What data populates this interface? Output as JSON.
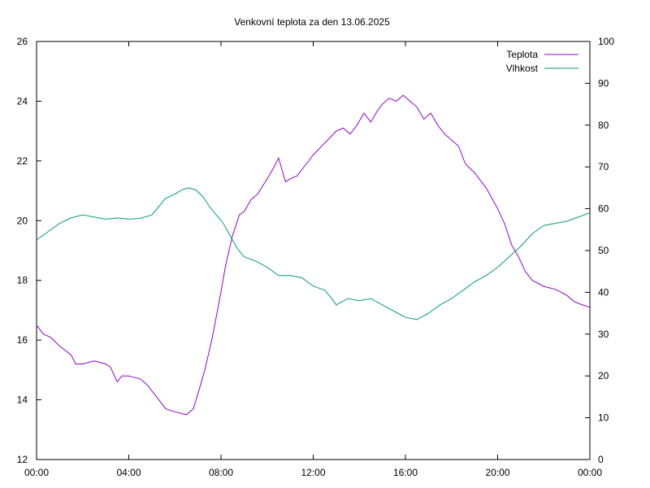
{
  "chart_data": {
    "type": "line",
    "title": "Venkovní teplota za den 13.06.2025",
    "x_ticks": [
      "00:00",
      "04:00",
      "08:00",
      "12:00",
      "16:00",
      "20:00",
      "00:00"
    ],
    "x_range_hours": [
      0,
      24
    ],
    "y_left": {
      "range": [
        12,
        26
      ],
      "ticks": [
        "12",
        "14",
        "16",
        "18",
        "20",
        "22",
        "24",
        "26"
      ]
    },
    "y_right": {
      "range": [
        0,
        100
      ],
      "ticks": [
        "0",
        "10",
        "20",
        "30",
        "40",
        "50",
        "60",
        "70",
        "80",
        "90",
        "100"
      ]
    },
    "grid": false,
    "legend_position": "top-right",
    "series": [
      {
        "name": "Teplota",
        "axis": "left",
        "color": "#9400d3",
        "points": [
          [
            0,
            16.5
          ],
          [
            0.3,
            16.2
          ],
          [
            0.6,
            16.1
          ],
          [
            1.0,
            15.8
          ],
          [
            1.5,
            15.5
          ],
          [
            1.7,
            15.2
          ],
          [
            2.0,
            15.2
          ],
          [
            2.5,
            15.3
          ],
          [
            3.0,
            15.2
          ],
          [
            3.2,
            15.1
          ],
          [
            3.5,
            14.6
          ],
          [
            3.7,
            14.8
          ],
          [
            4.0,
            14.8
          ],
          [
            4.5,
            14.7
          ],
          [
            4.8,
            14.5
          ],
          [
            5.0,
            14.3
          ],
          [
            5.3,
            14.0
          ],
          [
            5.6,
            13.7
          ],
          [
            6.0,
            13.6
          ],
          [
            6.5,
            13.5
          ],
          [
            6.8,
            13.7
          ],
          [
            7.0,
            14.2
          ],
          [
            7.3,
            15.0
          ],
          [
            7.6,
            16.0
          ],
          [
            7.9,
            17.2
          ],
          [
            8.2,
            18.5
          ],
          [
            8.5,
            19.5
          ],
          [
            8.8,
            20.2
          ],
          [
            9.0,
            20.3
          ],
          [
            9.3,
            20.7
          ],
          [
            9.6,
            20.9
          ],
          [
            10.0,
            21.4
          ],
          [
            10.3,
            21.8
          ],
          [
            10.5,
            22.1
          ],
          [
            10.8,
            21.3
          ],
          [
            11.0,
            21.4
          ],
          [
            11.3,
            21.5
          ],
          [
            11.7,
            21.9
          ],
          [
            12.0,
            22.2
          ],
          [
            12.5,
            22.6
          ],
          [
            13.0,
            23.0
          ],
          [
            13.3,
            23.1
          ],
          [
            13.6,
            22.9
          ],
          [
            13.9,
            23.2
          ],
          [
            14.2,
            23.6
          ],
          [
            14.5,
            23.3
          ],
          [
            14.8,
            23.7
          ],
          [
            15.0,
            23.9
          ],
          [
            15.3,
            24.1
          ],
          [
            15.6,
            24.0
          ],
          [
            15.9,
            24.2
          ],
          [
            16.2,
            24.0
          ],
          [
            16.5,
            23.8
          ],
          [
            16.8,
            23.4
          ],
          [
            17.1,
            23.6
          ],
          [
            17.4,
            23.2
          ],
          [
            17.7,
            22.9
          ],
          [
            18.0,
            22.7
          ],
          [
            18.3,
            22.5
          ],
          [
            18.6,
            21.9
          ],
          [
            19.0,
            21.6
          ],
          [
            19.5,
            21.1
          ],
          [
            20.0,
            20.4
          ],
          [
            20.3,
            19.9
          ],
          [
            20.6,
            19.2
          ],
          [
            20.9,
            18.8
          ],
          [
            21.2,
            18.3
          ],
          [
            21.5,
            18.0
          ],
          [
            22.0,
            17.8
          ],
          [
            22.5,
            17.7
          ],
          [
            23.0,
            17.5
          ],
          [
            23.3,
            17.3
          ],
          [
            23.6,
            17.2
          ],
          [
            24.0,
            17.1
          ]
        ]
      },
      {
        "name": "Vlhkost",
        "axis": "right",
        "color": "#009e73",
        "points": [
          [
            0,
            52.5
          ],
          [
            0.5,
            54.5
          ],
          [
            1.0,
            56.5
          ],
          [
            1.5,
            57.8
          ],
          [
            2.0,
            58.5
          ],
          [
            2.5,
            58.0
          ],
          [
            3.0,
            57.5
          ],
          [
            3.5,
            57.8
          ],
          [
            4.0,
            57.5
          ],
          [
            4.5,
            57.7
          ],
          [
            5.0,
            58.5
          ],
          [
            5.3,
            60.5
          ],
          [
            5.6,
            62.5
          ],
          [
            6.0,
            63.5
          ],
          [
            6.3,
            64.5
          ],
          [
            6.6,
            65.0
          ],
          [
            6.9,
            64.5
          ],
          [
            7.2,
            63.0
          ],
          [
            7.5,
            60.5
          ],
          [
            7.8,
            58.5
          ],
          [
            8.1,
            56.5
          ],
          [
            8.4,
            53.5
          ],
          [
            8.7,
            50.5
          ],
          [
            9.0,
            48.5
          ],
          [
            9.5,
            47.5
          ],
          [
            10.0,
            46.0
          ],
          [
            10.5,
            44.0
          ],
          [
            11.0,
            44.0
          ],
          [
            11.5,
            43.5
          ],
          [
            12.0,
            41.5
          ],
          [
            12.5,
            40.5
          ],
          [
            12.8,
            38.5
          ],
          [
            13.0,
            37.0
          ],
          [
            13.5,
            38.5
          ],
          [
            14.0,
            38.0
          ],
          [
            14.5,
            38.5
          ],
          [
            15.0,
            37.0
          ],
          [
            15.5,
            35.5
          ],
          [
            16.0,
            34.0
          ],
          [
            16.5,
            33.5
          ],
          [
            17.0,
            35.0
          ],
          [
            17.5,
            37.0
          ],
          [
            18.0,
            38.5
          ],
          [
            18.5,
            40.5
          ],
          [
            19.0,
            42.5
          ],
          [
            19.5,
            44.0
          ],
          [
            20.0,
            46.0
          ],
          [
            20.5,
            48.5
          ],
          [
            21.0,
            51.0
          ],
          [
            21.5,
            54.0
          ],
          [
            22.0,
            56.0
          ],
          [
            22.5,
            56.5
          ],
          [
            23.0,
            57.0
          ],
          [
            23.5,
            58.0
          ],
          [
            24.0,
            59.0
          ]
        ]
      }
    ]
  }
}
